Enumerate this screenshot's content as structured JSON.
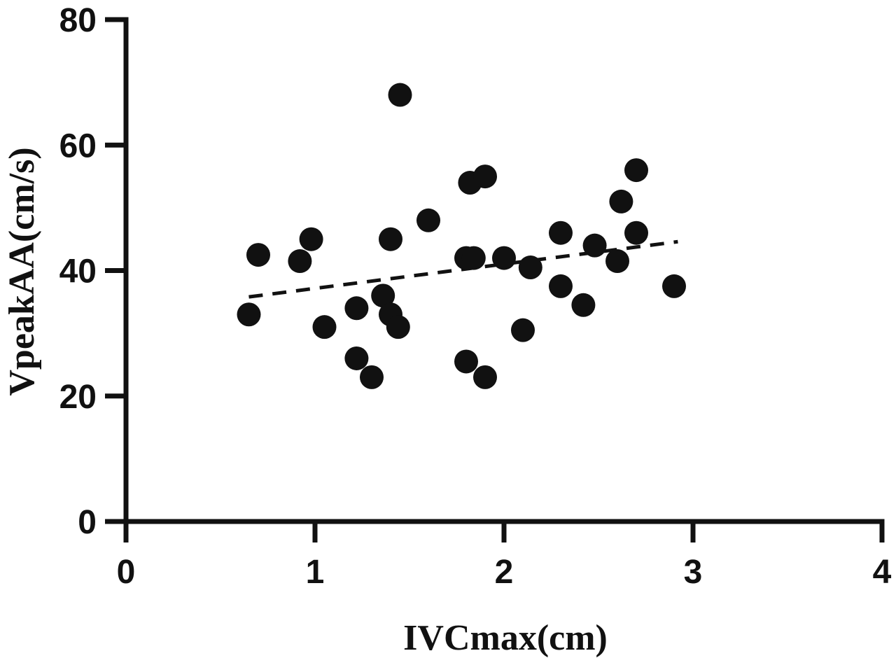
{
  "chart_data": {
    "type": "scatter",
    "title": "",
    "xlabel": "IVCmax(cm)",
    "ylabel": "VpeakAA(cm/s)",
    "xlim": [
      0,
      4
    ],
    "ylim": [
      0,
      80
    ],
    "x_ticks": [
      "0",
      "1",
      "2",
      "3",
      "4"
    ],
    "y_ticks": [
      "0",
      "20",
      "40",
      "60",
      "80"
    ],
    "grid": false,
    "legend": "none",
    "point_color": "#111111",
    "points": [
      {
        "x": 0.65,
        "y": 33
      },
      {
        "x": 0.7,
        "y": 42.5
      },
      {
        "x": 0.92,
        "y": 41.5
      },
      {
        "x": 0.98,
        "y": 45
      },
      {
        "x": 1.05,
        "y": 31
      },
      {
        "x": 1.22,
        "y": 34
      },
      {
        "x": 1.22,
        "y": 26
      },
      {
        "x": 1.3,
        "y": 23
      },
      {
        "x": 1.36,
        "y": 36
      },
      {
        "x": 1.4,
        "y": 45
      },
      {
        "x": 1.4,
        "y": 33
      },
      {
        "x": 1.44,
        "y": 31
      },
      {
        "x": 1.45,
        "y": 68
      },
      {
        "x": 1.6,
        "y": 48
      },
      {
        "x": 1.8,
        "y": 42
      },
      {
        "x": 1.8,
        "y": 25.5
      },
      {
        "x": 1.82,
        "y": 54
      },
      {
        "x": 1.84,
        "y": 42
      },
      {
        "x": 1.9,
        "y": 55
      },
      {
        "x": 1.9,
        "y": 23
      },
      {
        "x": 2.0,
        "y": 42
      },
      {
        "x": 2.1,
        "y": 30.5
      },
      {
        "x": 2.14,
        "y": 40.5
      },
      {
        "x": 2.3,
        "y": 46
      },
      {
        "x": 2.3,
        "y": 37.5
      },
      {
        "x": 2.42,
        "y": 34.5
      },
      {
        "x": 2.48,
        "y": 44
      },
      {
        "x": 2.6,
        "y": 41.5
      },
      {
        "x": 2.62,
        "y": 51
      },
      {
        "x": 2.7,
        "y": 56
      },
      {
        "x": 2.7,
        "y": 46
      },
      {
        "x": 2.9,
        "y": 37.5
      }
    ],
    "trendline": {
      "x": [
        0.65,
        2.92
      ],
      "y": [
        35.8,
        44.6
      ]
    }
  }
}
